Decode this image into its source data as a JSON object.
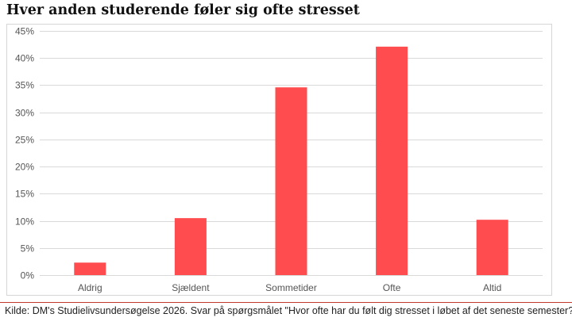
{
  "header": {
    "title": "Hver anden studerende føler sig ofte stresset"
  },
  "footer": {
    "source": "Kilde: DM's Studielivsundersøgelse 2026. Svar på spørgsmålet \"Hvor ofte har du følt dig stresset i løbet af det seneste semester?\""
  },
  "colors": {
    "bar": "#ff4d4f",
    "grid": "#d9d9d9",
    "accent_rule": "#c0392b"
  },
  "chart_data": {
    "type": "bar",
    "title": "Hver anden studerende føler sig ofte stresset",
    "categories": [
      "Aldrig",
      "Sjældent",
      "Sommetider",
      "Ofte",
      "Altid"
    ],
    "values": [
      2.3,
      10.5,
      34.6,
      42.1,
      10.2
    ],
    "unit": "%",
    "ylim": [
      0,
      45
    ],
    "yticks": [
      0,
      5,
      10,
      15,
      20,
      25,
      30,
      35,
      40,
      45
    ],
    "ytick_labels": [
      "0%",
      "5%",
      "10%",
      "15%",
      "20%",
      "25%",
      "30%",
      "35%",
      "40%",
      "45%"
    ],
    "grid": true,
    "legend": "none"
  }
}
